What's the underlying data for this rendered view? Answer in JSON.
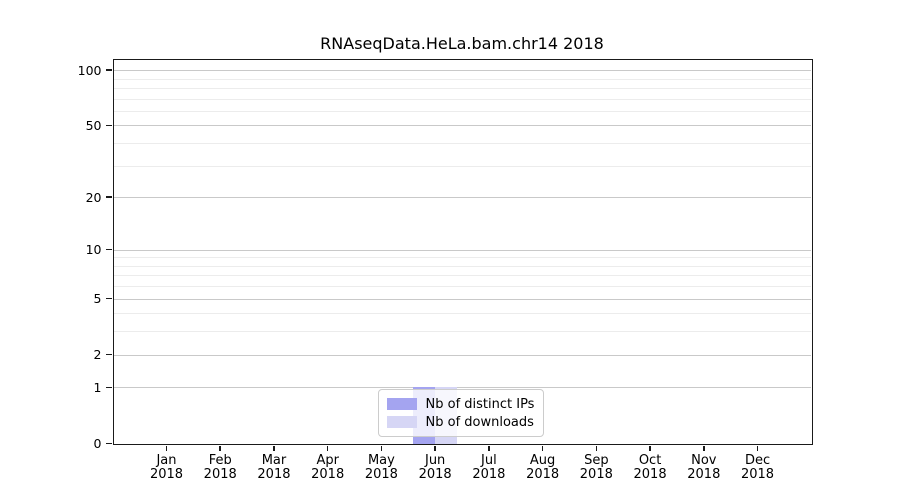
{
  "chart_data": {
    "type": "bar",
    "title": "RNAseqData.HeLa.bam.chr14 2018",
    "categories": [
      "Jan",
      "Feb",
      "Mar",
      "Apr",
      "May",
      "Jun",
      "Jul",
      "Aug",
      "Sep",
      "Oct",
      "Nov",
      "Dec"
    ],
    "category_year": "2018",
    "series": [
      {
        "name": "Nb of distinct IPs",
        "color": "#a4a4f0",
        "values": [
          0,
          0,
          0,
          0,
          0,
          1,
          0,
          0,
          0,
          0,
          0,
          0
        ]
      },
      {
        "name": "Nb of downloads",
        "color": "#d6d6f5",
        "values": [
          0,
          0,
          0,
          0,
          0,
          1,
          0,
          0,
          0,
          0,
          0,
          0
        ]
      }
    ],
    "yscale": "log1p",
    "yticks": [
      0,
      1,
      2,
      5,
      10,
      20,
      50,
      100
    ],
    "minor_yticks": [
      3,
      4,
      6,
      7,
      8,
      9,
      30,
      40,
      60,
      70,
      80,
      90
    ],
    "ylim": [
      0,
      113
    ],
    "xlabel": "",
    "ylabel": "",
    "grid": true,
    "legend_position": "lower center",
    "colors": {
      "grid_major": "#c9c9c9",
      "grid_minor": "#ececec",
      "spine": "#1a1a1a",
      "text": "#000000"
    }
  }
}
